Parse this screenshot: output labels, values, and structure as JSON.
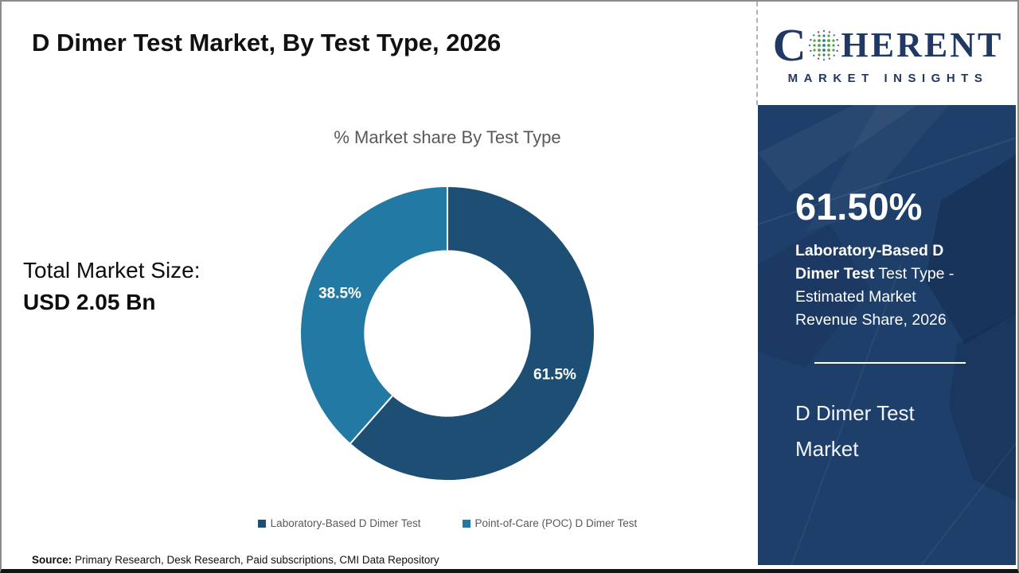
{
  "header": {
    "title": "D Dimer Test Market, By Test Type, 2026"
  },
  "logo": {
    "word_start": "C",
    "word_end": "HERENT",
    "subtitle": "MARKET INSIGHTS",
    "brand_color": "#203864",
    "globe_colors": {
      "green": "#55a246",
      "teal": "#2f7f9d",
      "magenta": "#a63d7c"
    }
  },
  "left_panel": {
    "total_label": "Total Market Size:",
    "total_value": "USD 2.05 Bn"
  },
  "chart_data": {
    "type": "pie",
    "subtype": "donut",
    "title": "% Market share By Test Type",
    "categories": [
      "Laboratory-Based D Dimer Test",
      "Point-of-Care (POC) D Dimer Test"
    ],
    "values": [
      61.5,
      38.5
    ],
    "slice_labels": [
      "61.5%",
      "38.5%"
    ],
    "colors": [
      "#1d4e74",
      "#2279a3"
    ],
    "start_angle_deg": 0,
    "direction": "clockwise",
    "donut_hole_ratio": 0.56,
    "legend_position": "bottom"
  },
  "sidebar": {
    "bg_color": "#1e3f6a",
    "headline_value": "61.50%",
    "desc_bold": "Laboratory-Based D Dimer Test",
    "desc_rest": " Test Type - Estimated Market Revenue Share, 2026",
    "footer_title": "D Dimer Test Market"
  },
  "footer": {
    "source_label": "Source:",
    "source_text": " Primary Research, Desk Research, Paid subscriptions, CMI Data Repository"
  }
}
